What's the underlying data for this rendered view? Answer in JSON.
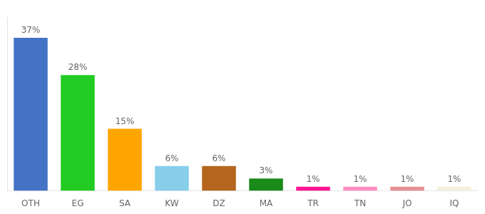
{
  "chart_data": {
    "type": "bar",
    "categories": [
      "OTH",
      "EG",
      "SA",
      "KW",
      "DZ",
      "MA",
      "TR",
      "TN",
      "JO",
      "IQ"
    ],
    "values": [
      37,
      28,
      15,
      6,
      6,
      3,
      1,
      1,
      1,
      1
    ],
    "value_labels": [
      "37%",
      "28%",
      "15%",
      "6%",
      "6%",
      "3%",
      "1%",
      "1%",
      "1%",
      "1%"
    ],
    "colors": [
      "#4472C4",
      "#22CC22",
      "#FFA500",
      "#87CEEB",
      "#B5651D",
      "#1A8A1A",
      "#FF1493",
      "#FF90C0",
      "#E89090",
      "#F5F0DC"
    ],
    "ylim": [
      0,
      42
    ],
    "grid": false,
    "tick_labels": "x",
    "data_labels": true
  }
}
